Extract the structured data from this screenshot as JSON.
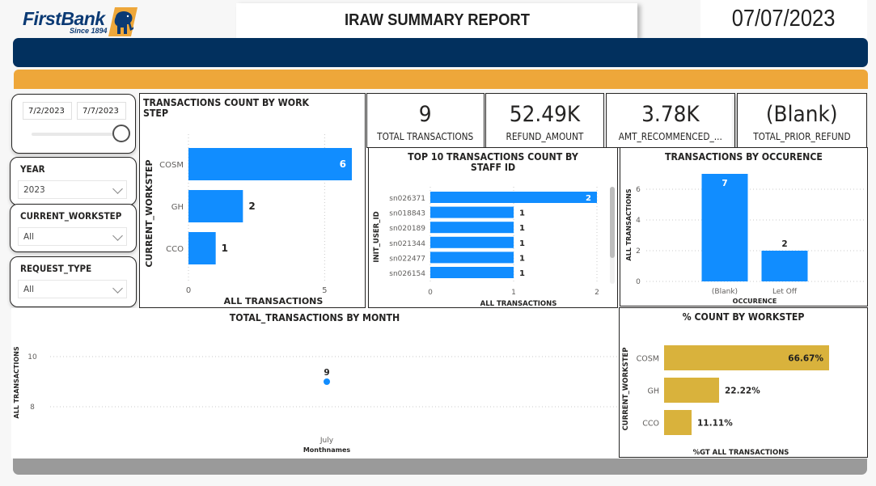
{
  "header": {
    "brand_name": "FirstBank",
    "brand_tagline": "Since 1894",
    "report_title": "IRAW SUMMARY REPORT",
    "report_date": "07/07/2023"
  },
  "colors": {
    "navy": "#02305e",
    "orange": "#eea73a",
    "bar_blue": "#118dff",
    "bar_gold": "#d9b23c",
    "footer_gray": "#9a9a9a"
  },
  "filters": {
    "date_range": {
      "start": "7/2/2023",
      "end": "7/7/2023",
      "slider_position_pct": 100
    },
    "year": {
      "label": "YEAR",
      "value": "2023"
    },
    "current_workstep": {
      "label": "CURRENT_WORKSTEP",
      "value": "All"
    },
    "request_type": {
      "label": "REQUEST_TYPE",
      "value": "All"
    }
  },
  "kpis": [
    {
      "value": "9",
      "label": "TOTAL TRANSACTIONS"
    },
    {
      "value": "52.49K",
      "label": "REFUND_AMOUNT"
    },
    {
      "value": "3.78K",
      "label": "AMT_RECOMMENCED_..."
    },
    {
      "value": "(Blank)",
      "label": "TOTAL_PRIOR_REFUND"
    }
  ],
  "chart_data": [
    {
      "id": "workstep",
      "type": "bar",
      "orientation": "horizontal",
      "title": "TRANSACTIONS COUNT BY WORK STEP",
      "title_lines": [
        "TRANSACTIONS COUNT BY WORK",
        "STEP"
      ],
      "categories": [
        "COSM",
        "GH",
        "CCO"
      ],
      "values": [
        6,
        2,
        1
      ],
      "xlabel": "ALL TRANSACTIONS",
      "ylabel": "CURRENT_WORKSTEP",
      "xticks": [
        0,
        5
      ],
      "xlim": [
        0,
        6
      ],
      "grid": true
    },
    {
      "id": "staff",
      "type": "bar",
      "orientation": "horizontal",
      "title": "TOP 10 TRANSACTIONS COUNT BY STAFF ID",
      "title_lines": [
        "TOP 10 TRANSACTIONS COUNT BY",
        "STAFF ID"
      ],
      "categories": [
        "sn026371",
        "sn018843",
        "sn020189",
        "sn021344",
        "sn022477",
        "sn026154"
      ],
      "values": [
        2,
        1,
        1,
        1,
        1,
        1
      ],
      "xlabel": "ALL TRANSACTIONS",
      "ylabel": "INIT_USER_ID",
      "xticks": [
        0,
        1,
        2
      ],
      "xlim": [
        0,
        2
      ],
      "grid": true
    },
    {
      "id": "occurence",
      "type": "bar",
      "orientation": "vertical",
      "title": "TRANSACTIONS BY OCCURENCE",
      "categories": [
        "(Blank)",
        "Let Off"
      ],
      "values": [
        7,
        2
      ],
      "xlabel": "OCCURENCE",
      "ylabel": "ALL TRANSACTIONS",
      "yticks": [
        0,
        2,
        4,
        6
      ],
      "ylim": [
        0,
        7
      ],
      "grid": true
    },
    {
      "id": "month",
      "type": "scatter",
      "title": "TOTAL_TRANSACTIONS BY MONTH",
      "categories": [
        "July"
      ],
      "values": [
        9
      ],
      "xlabel": "Monthnames",
      "ylabel": "ALL TRANSACTIONS",
      "yticks": [
        8,
        10
      ],
      "ylim": [
        7,
        10.8
      ],
      "grid": true
    },
    {
      "id": "pct",
      "type": "bar",
      "orientation": "horizontal",
      "title": "% COUNT BY WORKSTEP",
      "categories": [
        "COSM",
        "GH",
        "CCO"
      ],
      "values": [
        66.67,
        22.22,
        11.11
      ],
      "value_labels": [
        "66.67%",
        "22.22%",
        "11.11%"
      ],
      "xlabel": "%GT ALL TRANSACTIONS",
      "ylabel": "CURRENT_WORKSTEP",
      "xlim": [
        0,
        66.67
      ],
      "grid": false
    }
  ]
}
